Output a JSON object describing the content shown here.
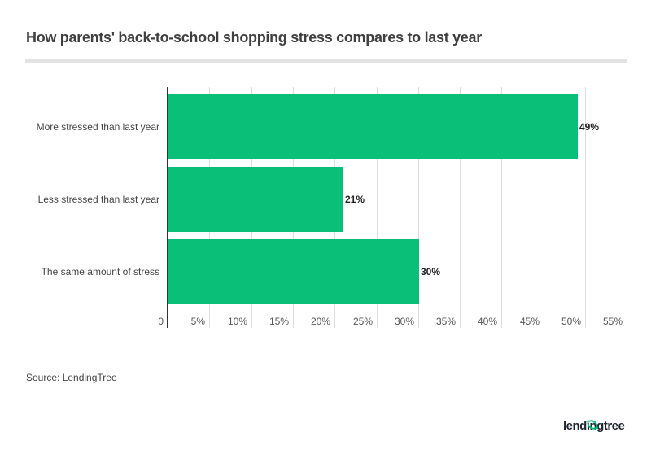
{
  "title": "How parents' back-to-school shopping stress compares to last year",
  "source": "Source: LendingTree",
  "logo": {
    "text": "lendingtree",
    "icon": "leaf-icon",
    "accent": "#08bd7a"
  },
  "colors": {
    "bar": "#0abf77",
    "grid": "#dcdcdc",
    "axis": "#333333"
  },
  "chart_data": {
    "type": "bar",
    "orientation": "horizontal",
    "title": "How parents' back-to-school shopping stress compares to last year",
    "categories": [
      "More stressed than last year",
      "Less stressed than last year",
      "The same amount of stress"
    ],
    "values": [
      49,
      21,
      30
    ],
    "value_labels": [
      "49%",
      "21%",
      "30%"
    ],
    "xlabel": "",
    "ylabel": "",
    "xlim": [
      0,
      55
    ],
    "x_ticks": [
      "0",
      "5%",
      "10%",
      "15%",
      "20%",
      "25%",
      "30%",
      "35%",
      "40%",
      "45%",
      "50%",
      "55%"
    ],
    "grid": "vertical",
    "legend": "none"
  }
}
